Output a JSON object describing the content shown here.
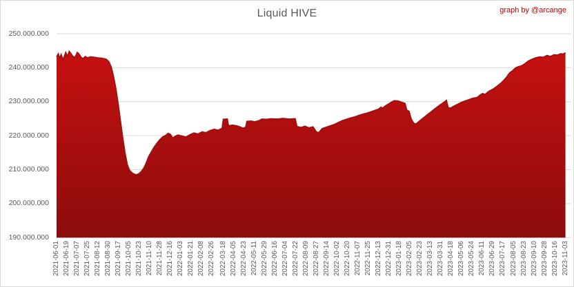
{
  "header": {
    "title": "Liquid HIVE",
    "credit": "graph by @arcange"
  },
  "colors": {
    "title_text": "#595959",
    "axis_label_text": "#595959",
    "credit_text": "#c00000",
    "gridline": "#d9d9d9",
    "chart_border": "#d9d9d9",
    "area_gradient_top": "#cb1111",
    "area_gradient_bottom": "#8c0c0c",
    "area_edge_line": "#9d1111",
    "background": "#ffffff"
  },
  "chart_data": {
    "type": "area",
    "title": "Liquid HIVE",
    "xlabel": "",
    "ylabel": "",
    "unit": "HIVE",
    "ylim": [
      190000000,
      250000000
    ],
    "y_tick_interval": 10000000,
    "grid": "horizontal",
    "legend": "none",
    "y_tick_labels": [
      "250.000.000",
      "240.000.000",
      "230.000.000",
      "220.000.000",
      "210.000.000",
      "200.000.000",
      "190.000.000"
    ],
    "x_tick_labels": [
      "2021-06-01",
      "2021-06-19",
      "2021-07-07",
      "2021-07-25",
      "2021-08-12",
      "2021-08-30",
      "2021-09-17",
      "2021-10-05",
      "2021-10-23",
      "2021-11-10",
      "2021-11-28",
      "2021-12-16",
      "2022-01-03",
      "2022-01-21",
      "2022-02-08",
      "2022-02-26",
      "2022-03-18",
      "2022-04-05",
      "2022-04-23",
      "2022-05-11",
      "2022-05-29",
      "2022-06-16",
      "2022-07-04",
      "2022-07-22",
      "2022-08-09",
      "2022-08-27",
      "2022-09-14",
      "2022-10-02",
      "2022-10-20",
      "2022-11-07",
      "2022-11-25",
      "2022-12-13",
      "2022-12-31",
      "2023-01-18",
      "2023-02-05",
      "2023-02-23",
      "2023-03-13",
      "2023-03-31",
      "2023-04-18",
      "2023-05-06",
      "2023-05-24",
      "2023-06-11",
      "2023-06-29",
      "2023-07-17",
      "2023-08-05",
      "2023-08-23",
      "2023-09-10",
      "2023-09-28",
      "2023-10-16",
      "2023-11-03"
    ],
    "series": [
      {
        "name": "Liquid HIVE",
        "points": [
          [
            "2021-06-01",
            243200000
          ],
          [
            "2021-06-04",
            244100000
          ],
          [
            "2021-06-06",
            242800000
          ],
          [
            "2021-06-09",
            243900000
          ],
          [
            "2021-06-12",
            242300000
          ],
          [
            "2021-06-15",
            243600000
          ],
          [
            "2021-06-17",
            244500000
          ],
          [
            "2021-06-20",
            243300000
          ],
          [
            "2021-06-23",
            244800000
          ],
          [
            "2021-06-26",
            244200000
          ],
          [
            "2021-06-29",
            243400000
          ],
          [
            "2021-07-03",
            243000000
          ],
          [
            "2021-07-07",
            244500000
          ],
          [
            "2021-07-10",
            244000000
          ],
          [
            "2021-07-14",
            243000000
          ],
          [
            "2021-07-17",
            242700000
          ],
          [
            "2021-07-21",
            243300000
          ],
          [
            "2021-07-25",
            242900000
          ],
          [
            "2021-07-30",
            243200000
          ],
          [
            "2021-08-05",
            243100000
          ],
          [
            "2021-08-12",
            242900000
          ],
          [
            "2021-08-19",
            242800000
          ],
          [
            "2021-08-26",
            242500000
          ],
          [
            "2021-08-31",
            241800000
          ],
          [
            "2021-09-04",
            240200000
          ],
          [
            "2021-09-08",
            237500000
          ],
          [
            "2021-09-12",
            234000000
          ],
          [
            "2021-09-16",
            229500000
          ],
          [
            "2021-09-20",
            224500000
          ],
          [
            "2021-09-24",
            219500000
          ],
          [
            "2021-09-28",
            215000000
          ],
          [
            "2021-10-02",
            211500000
          ],
          [
            "2021-10-06",
            209800000
          ],
          [
            "2021-10-10",
            209100000
          ],
          [
            "2021-10-14",
            208700000
          ],
          [
            "2021-10-18",
            208500000
          ],
          [
            "2021-10-22",
            208800000
          ],
          [
            "2021-10-26",
            209400000
          ],
          [
            "2021-10-30",
            210300000
          ],
          [
            "2021-11-03",
            211600000
          ],
          [
            "2021-11-08",
            213800000
          ],
          [
            "2021-11-13",
            215300000
          ],
          [
            "2021-11-18",
            216700000
          ],
          [
            "2021-11-23",
            217900000
          ],
          [
            "2021-11-28",
            218900000
          ],
          [
            "2021-12-03",
            219700000
          ],
          [
            "2021-12-08",
            220100000
          ],
          [
            "2021-12-12",
            220700000
          ],
          [
            "2021-12-16",
            220400000
          ],
          [
            "2021-12-20",
            219300000
          ],
          [
            "2021-12-24",
            219800000
          ],
          [
            "2021-12-29",
            220200000
          ],
          [
            "2022-01-05",
            219900000
          ],
          [
            "2022-01-12",
            219600000
          ],
          [
            "2022-01-19",
            220300000
          ],
          [
            "2022-01-26",
            220800000
          ],
          [
            "2022-02-02",
            220500000
          ],
          [
            "2022-02-09",
            221100000
          ],
          [
            "2022-02-16",
            220900000
          ],
          [
            "2022-02-23",
            221500000
          ],
          [
            "2022-03-02",
            221900000
          ],
          [
            "2022-03-09",
            221600000
          ],
          [
            "2022-03-16",
            222200000
          ],
          [
            "2022-03-18",
            224800000
          ],
          [
            "2022-03-25",
            224900000
          ],
          [
            "2022-03-27",
            222900000
          ],
          [
            "2022-04-03",
            223100000
          ],
          [
            "2022-04-10",
            222900000
          ],
          [
            "2022-04-16",
            222600000
          ],
          [
            "2022-04-21",
            222200000
          ],
          [
            "2022-04-26",
            222500000
          ],
          [
            "2022-04-28",
            224200000
          ],
          [
            "2022-05-05",
            224300000
          ],
          [
            "2022-05-12",
            224100000
          ],
          [
            "2022-05-19",
            224400000
          ],
          [
            "2022-05-24",
            224900000
          ],
          [
            "2022-06-01",
            224800000
          ],
          [
            "2022-06-10",
            225000000
          ],
          [
            "2022-06-20",
            224900000
          ],
          [
            "2022-06-30",
            225100000
          ],
          [
            "2022-07-10",
            224900000
          ],
          [
            "2022-07-21",
            225000000
          ],
          [
            "2022-07-24",
            222700000
          ],
          [
            "2022-07-31",
            222400000
          ],
          [
            "2022-08-07",
            222800000
          ],
          [
            "2022-08-14",
            222300000
          ],
          [
            "2022-08-21",
            222600000
          ],
          [
            "2022-08-27",
            221100000
          ],
          [
            "2022-08-31",
            220900000
          ],
          [
            "2022-09-06",
            222100000
          ],
          [
            "2022-09-13",
            222500000
          ],
          [
            "2022-09-20",
            222900000
          ],
          [
            "2022-09-27",
            223300000
          ],
          [
            "2022-10-04",
            223900000
          ],
          [
            "2022-10-11",
            224400000
          ],
          [
            "2022-10-18",
            224800000
          ],
          [
            "2022-10-25",
            225200000
          ],
          [
            "2022-11-01",
            225500000
          ],
          [
            "2022-11-08",
            225900000
          ],
          [
            "2022-11-15",
            226300000
          ],
          [
            "2022-11-22",
            226600000
          ],
          [
            "2022-11-29",
            227000000
          ],
          [
            "2022-12-06",
            227400000
          ],
          [
            "2022-12-13",
            227800000
          ],
          [
            "2022-12-17",
            228400000
          ],
          [
            "2022-12-20",
            228100000
          ],
          [
            "2022-12-26",
            228900000
          ],
          [
            "2023-01-02",
            229600000
          ],
          [
            "2023-01-09",
            230300000
          ],
          [
            "2023-01-16",
            230200000
          ],
          [
            "2023-01-23",
            229800000
          ],
          [
            "2023-01-28",
            229500000
          ],
          [
            "2023-01-31",
            227500000
          ],
          [
            "2023-02-04",
            227200000
          ],
          [
            "2023-02-08",
            224800000
          ],
          [
            "2023-02-12",
            223700000
          ],
          [
            "2023-02-16",
            223400000
          ],
          [
            "2023-02-20",
            224000000
          ],
          [
            "2023-02-25",
            224700000
          ],
          [
            "2023-03-03",
            225500000
          ],
          [
            "2023-03-09",
            226300000
          ],
          [
            "2023-03-15",
            227100000
          ],
          [
            "2023-03-21",
            227900000
          ],
          [
            "2023-03-27",
            228700000
          ],
          [
            "2023-04-02",
            229400000
          ],
          [
            "2023-04-07",
            230000000
          ],
          [
            "2023-04-10",
            230400000
          ],
          [
            "2023-04-13",
            228300000
          ],
          [
            "2023-04-17",
            228100000
          ],
          [
            "2023-04-22",
            228600000
          ],
          [
            "2023-04-28",
            229100000
          ],
          [
            "2023-05-05",
            229700000
          ],
          [
            "2023-05-12",
            230200000
          ],
          [
            "2023-05-19",
            230600000
          ],
          [
            "2023-05-26",
            231000000
          ],
          [
            "2023-06-02",
            231200000
          ],
          [
            "2023-06-08",
            232000000
          ],
          [
            "2023-06-12",
            232400000
          ],
          [
            "2023-06-16",
            232100000
          ],
          [
            "2023-06-23",
            233100000
          ],
          [
            "2023-06-30",
            233700000
          ],
          [
            "2023-07-07",
            234500000
          ],
          [
            "2023-07-14",
            235500000
          ],
          [
            "2023-07-19",
            236300000
          ],
          [
            "2023-07-24",
            237300000
          ],
          [
            "2023-07-29",
            238500000
          ],
          [
            "2023-08-03",
            239100000
          ],
          [
            "2023-08-08",
            239900000
          ],
          [
            "2023-08-13",
            240300000
          ],
          [
            "2023-08-18",
            240500000
          ],
          [
            "2023-08-24",
            241100000
          ],
          [
            "2023-08-30",
            241900000
          ],
          [
            "2023-09-05",
            242400000
          ],
          [
            "2023-09-12",
            242900000
          ],
          [
            "2023-09-19",
            243200000
          ],
          [
            "2023-09-26",
            243100000
          ],
          [
            "2023-10-02",
            243600000
          ],
          [
            "2023-10-08",
            243300000
          ],
          [
            "2023-10-14",
            243800000
          ],
          [
            "2023-10-20",
            243700000
          ],
          [
            "2023-10-26",
            244100000
          ],
          [
            "2023-10-30",
            244000000
          ],
          [
            "2023-11-03",
            244400000
          ]
        ]
      }
    ]
  }
}
